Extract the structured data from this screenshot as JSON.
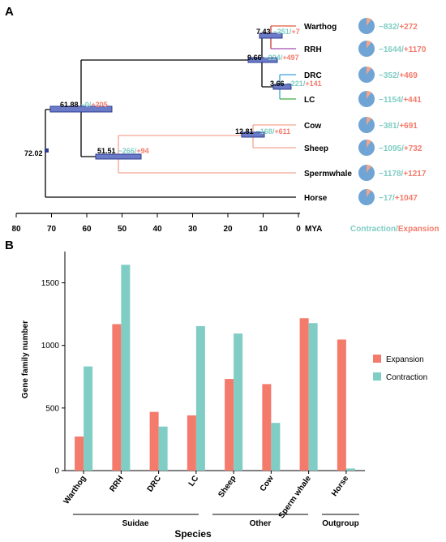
{
  "panel_a": {
    "label": "A",
    "axis_label": "MYA",
    "legend": {
      "contraction": "Contraction",
      "separator": "/",
      "expansion": "Expansion"
    },
    "colors": {
      "contraction": "#7fcdc4",
      "expansion": "#f47a6b"
    },
    "ticks": [
      80,
      70,
      60,
      50,
      40,
      30,
      20,
      10,
      0
    ],
    "species": [
      {
        "name": "Warthog",
        "contraction": "−832",
        "expansion": "+272"
      },
      {
        "name": "RRH",
        "contraction": "−1644",
        "expansion": "+1170"
      },
      {
        "name": "DRC",
        "contraction": "−352",
        "expansion": "+469"
      },
      {
        "name": "LC",
        "contraction": "−1154",
        "expansion": "+441"
      },
      {
        "name": "Cow",
        "contraction": "−381",
        "expansion": "+691"
      },
      {
        "name": "Sheep",
        "contraction": "−1095",
        "expansion": "+732"
      },
      {
        "name": "Spermwhale",
        "contraction": "−1178",
        "expansion": "+1217"
      },
      {
        "name": "Horse",
        "contraction": "−17",
        "expansion": "+1047"
      }
    ],
    "nodes": [
      {
        "age": "72.02"
      },
      {
        "age": "61.88",
        "contraction": "−0",
        "expansion": "+205"
      },
      {
        "age": "51.51",
        "contraction": "−266",
        "expansion": "+94"
      },
      {
        "age": "12.81",
        "contraction": "−168",
        "expansion": "+611"
      },
      {
        "age": "9.66",
        "contraction": "−224",
        "expansion": "+497"
      },
      {
        "age": "7.43",
        "contraction": "−251",
        "expansion": "+7"
      },
      {
        "age": "3.66",
        "contraction": "−221",
        "expansion": "+141"
      }
    ]
  },
  "panel_b": {
    "label": "B",
    "groups": [
      {
        "name": "Suidae"
      },
      {
        "name": "Other"
      },
      {
        "name": "Outgroup"
      }
    ]
  },
  "chart_data": {
    "type": "bar",
    "categories": [
      "Warthog",
      "RRH",
      "DRC",
      "LC",
      "Sheep",
      "Cow",
      "Sperm whale",
      "Horse"
    ],
    "series": [
      {
        "name": "Expansion",
        "color": "#f47a6b",
        "values": [
          272,
          1170,
          469,
          441,
          732,
          691,
          1217,
          1047
        ]
      },
      {
        "name": "Contraction",
        "color": "#7fcdc4",
        "values": [
          832,
          1644,
          352,
          1154,
          1095,
          381,
          1178,
          17
        ]
      }
    ],
    "xlabel": "Species",
    "ylabel": "Gene family number",
    "ylim": [
      0,
      1750
    ],
    "yticks": [
      0,
      500,
      1000,
      1500
    ],
    "legend_position": "right",
    "grid": false
  }
}
